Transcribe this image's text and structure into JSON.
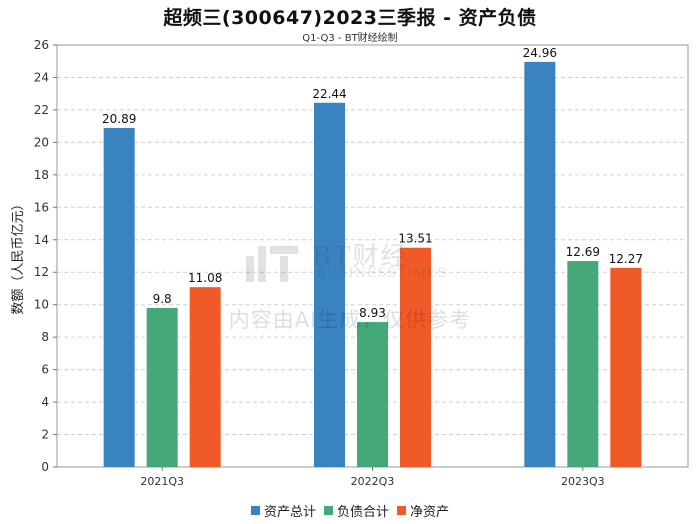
{
  "title": "超频三(300647)2023三季报 - 资产负债",
  "subtitle": "Q1-Q3 - BT财经绘制",
  "watermark": {
    "brand_big": "BT财经",
    "brand_small": "BUSINESSTIMES",
    "disclaimer": "内容由AI生成，仅供参考"
  },
  "chart_data": {
    "type": "bar",
    "categories": [
      "2021Q3",
      "2022Q3",
      "2023Q3"
    ],
    "series": [
      {
        "name": "资产总计",
        "values": [
          20.89,
          22.44,
          24.96
        ],
        "color": "#3a83c1"
      },
      {
        "name": "负债合计",
        "values": [
          9.8,
          8.93,
          12.69
        ],
        "color": "#45a878"
      },
      {
        "name": "净资产",
        "values": [
          11.08,
          13.51,
          12.27
        ],
        "color": "#f05a28"
      }
    ],
    "value_labels": [
      [
        "20.89",
        "22.44",
        "24.96"
      ],
      [
        "9.8",
        "8.93",
        "12.69"
      ],
      [
        "11.08",
        "13.51",
        "12.27"
      ]
    ],
    "ylabel": "数额（人民币亿元）",
    "ylim": [
      0,
      26
    ],
    "yticks": [
      0,
      2,
      4,
      6,
      8,
      10,
      12,
      14,
      16,
      18,
      20,
      22,
      24,
      26
    ],
    "grid": true,
    "legend_position": "bottom"
  }
}
